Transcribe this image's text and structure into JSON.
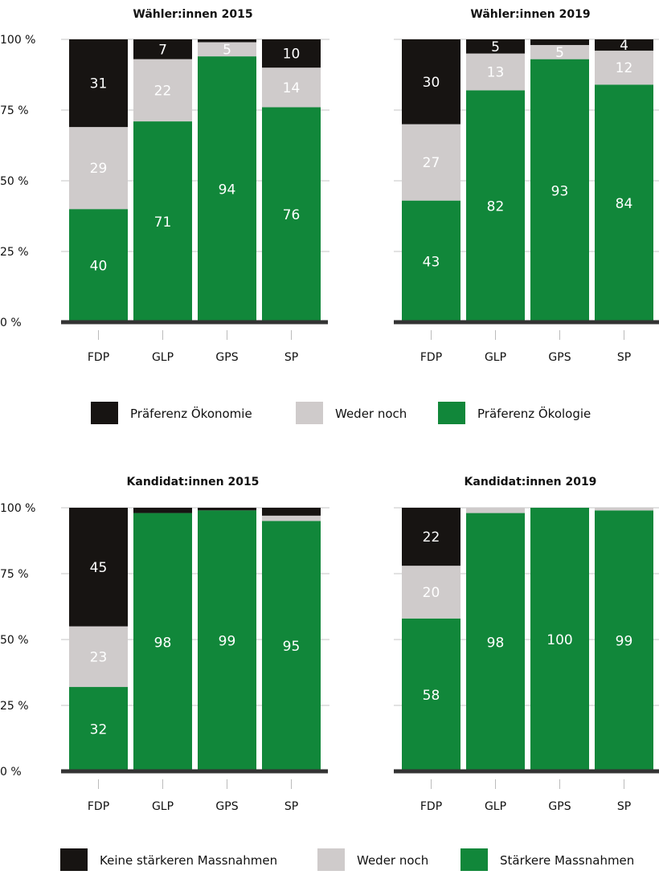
{
  "colors": {
    "economy": "#171412",
    "neutral": "#cfcbcb",
    "ecology": "#11873a",
    "axis": "#333333",
    "grid": "#d9d9d9",
    "label_on_dark": "#ffffff",
    "label_on_light": "#ffffff"
  },
  "chart_data": [
    {
      "type": "bar",
      "stacked": true,
      "title": "Wähler:innen 2015",
      "categories": [
        "FDP",
        "GLP",
        "GPS",
        "SP"
      ],
      "yticks": [
        "100 %",
        "75 %",
        "50 %",
        "25 %",
        "0 %"
      ],
      "ylim": [
        0,
        100
      ],
      "series": [
        {
          "name": "Präferenz Ökologie",
          "values": [
            40,
            71,
            94,
            76
          ],
          "labels": [
            "40",
            "71",
            "94",
            "76"
          ]
        },
        {
          "name": "Weder noch",
          "values": [
            29,
            22,
            5,
            14
          ],
          "labels": [
            "29",
            "22",
            "5",
            "14"
          ]
        },
        {
          "name": "Präferenz Ökonomie",
          "values": [
            31,
            7,
            1,
            10
          ],
          "labels": [
            "31",
            "7",
            "",
            "10"
          ]
        }
      ]
    },
    {
      "type": "bar",
      "stacked": true,
      "title": "Wähler:innen 2019",
      "categories": [
        "FDP",
        "GLP",
        "GPS",
        "SP"
      ],
      "yticks": [
        "",
        "",
        "",
        "",
        ""
      ],
      "ylim": [
        0,
        100
      ],
      "series": [
        {
          "name": "Präferenz Ökologie",
          "values": [
            43,
            82,
            93,
            84
          ],
          "labels": [
            "43",
            "82",
            "93",
            "84"
          ]
        },
        {
          "name": "Weder noch",
          "values": [
            27,
            13,
            5,
            12
          ],
          "labels": [
            "27",
            "13",
            "5",
            "12"
          ]
        },
        {
          "name": "Präferenz Ökonomie",
          "values": [
            30,
            5,
            2,
            4
          ],
          "labels": [
            "30",
            "5",
            "",
            "4"
          ]
        }
      ]
    },
    {
      "type": "bar",
      "stacked": true,
      "title": "Kandidat:innen 2015",
      "categories": [
        "FDP",
        "GLP",
        "GPS",
        "SP"
      ],
      "yticks": [
        "100 %",
        "75 %",
        "50 %",
        "25 %",
        "0 %"
      ],
      "ylim": [
        0,
        100
      ],
      "series": [
        {
          "name": "Stärkere Massnahmen",
          "values": [
            32,
            98,
            99,
            95
          ],
          "labels": [
            "32",
            "98",
            "99",
            "95"
          ]
        },
        {
          "name": "Weder noch",
          "values": [
            23,
            0,
            0,
            2
          ],
          "labels": [
            "23",
            "",
            "",
            ""
          ]
        },
        {
          "name": "Keine stärkeren Massnahmen",
          "values": [
            45,
            2,
            1,
            3
          ],
          "labels": [
            "45",
            "",
            "",
            ""
          ]
        }
      ]
    },
    {
      "type": "bar",
      "stacked": true,
      "title": "Kandidat:innen 2019",
      "categories": [
        "FDP",
        "GLP",
        "GPS",
        "SP"
      ],
      "yticks": [
        "",
        "",
        "",
        "",
        ""
      ],
      "ylim": [
        0,
        100
      ],
      "series": [
        {
          "name": "Stärkere Massnahmen",
          "values": [
            58,
            98,
            100,
            99
          ],
          "labels": [
            "58",
            "98",
            "100",
            "99"
          ]
        },
        {
          "name": "Weder noch",
          "values": [
            20,
            2,
            0,
            1
          ],
          "labels": [
            "20",
            "",
            "",
            ""
          ]
        },
        {
          "name": "Keine stärkeren Massnahmen",
          "values": [
            22,
            0,
            0,
            0
          ],
          "labels": [
            "22",
            "",
            "",
            ""
          ]
        }
      ]
    }
  ],
  "legend_top": [
    {
      "label": "Präferenz Ökonomie",
      "color_key": "economy"
    },
    {
      "label": "Weder noch",
      "color_key": "neutral"
    },
    {
      "label": "Präferenz Ökologie",
      "color_key": "ecology"
    }
  ],
  "legend_bottom": [
    {
      "label": "Keine stärkeren Massnahmen",
      "color_key": "economy"
    },
    {
      "label": "Weder noch",
      "color_key": "neutral"
    },
    {
      "label": "Stärkere Massnahmen",
      "color_key": "ecology"
    }
  ]
}
